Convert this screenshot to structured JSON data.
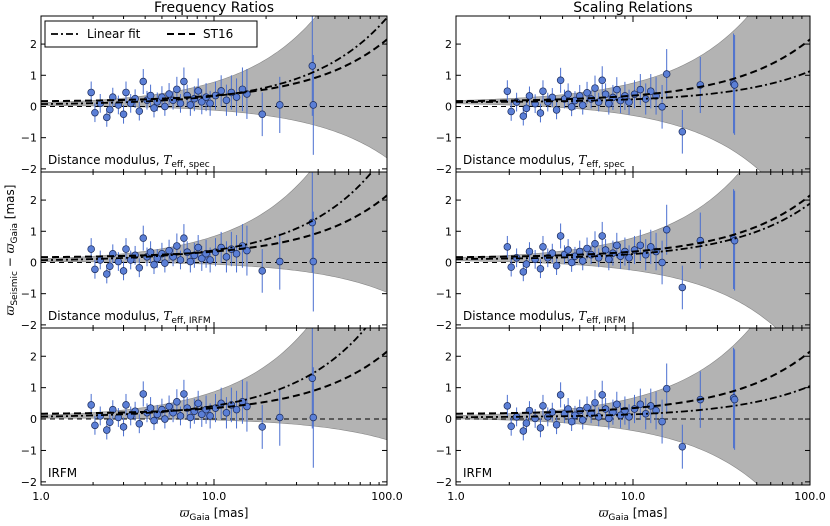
{
  "chart_data": {
    "type": "scatter",
    "columns": [
      {
        "title": "Frequency Ratios"
      },
      {
        "title": "Scaling Relations"
      }
    ],
    "row_labels": [
      {
        "prefix": "Distance modulus, ",
        "symbol": "T",
        "sub": "eff, spec"
      },
      {
        "prefix": "Distance modulus, ",
        "symbol": "T",
        "sub": "eff, IRFM"
      },
      {
        "prefix": "IRFM",
        "symbol": "",
        "sub": ""
      }
    ],
    "xlabel": {
      "symbol": "ϖ",
      "sub": "Gaia",
      "units": "[mas]"
    },
    "ylabel": {
      "symbol": "ϖ",
      "sub1": "Seismic",
      "minus": " − ",
      "sub2": "Gaia",
      "units": "[mas]"
    },
    "x_scale": "log",
    "xlim": [
      1.0,
      100.0
    ],
    "ylim": [
      -2.1,
      2.9
    ],
    "xtick_labels": [
      "1.0",
      "10.0",
      "100.0"
    ],
    "ytick_values": [
      -2,
      -1,
      0,
      1,
      2
    ],
    "ytick_labels": [
      "−2",
      "−1",
      "0",
      "1",
      "2"
    ],
    "legend": {
      "location": "upper-left",
      "entries": [
        {
          "label": "Linear fit",
          "style": "dash-dot"
        },
        {
          "label": "ST16",
          "style": "dashed"
        }
      ]
    },
    "reference_line": 0,
    "colors": {
      "points": "#5b7fd6",
      "errorbars": "#4a6fd0",
      "band": "#b3b3b3",
      "fit": "#000000"
    },
    "panels": [
      {
        "col": 0,
        "row": 0,
        "fit_intercept": 0.05,
        "fit_slope": 0.028,
        "band_width": 0.045
      },
      {
        "col": 1,
        "row": 0,
        "fit_intercept": 0.13,
        "fit_slope": 0.01,
        "band_width": 0.052
      },
      {
        "col": 0,
        "row": 1,
        "fit_intercept": 0.04,
        "fit_slope": 0.035,
        "band_width": 0.045
      },
      {
        "col": 1,
        "row": 1,
        "fit_intercept": 0.09,
        "fit_slope": 0.018,
        "band_width": 0.052
      },
      {
        "col": 0,
        "row": 2,
        "fit_intercept": 0.04,
        "fit_slope": 0.038,
        "band_width": 0.045
      },
      {
        "col": 1,
        "row": 2,
        "fit_intercept": 0.05,
        "fit_slope": 0.01,
        "band_width": 0.052
      }
    ],
    "st16_curve": {
      "intercept": 0.15,
      "slope": 0.02
    },
    "points": [
      {
        "x": 1.95,
        "y": 0.45,
        "err": 0.35
      },
      {
        "x": 2.05,
        "y": -0.2,
        "err": 0.3
      },
      {
        "x": 2.2,
        "y": 0.1,
        "err": 0.3
      },
      {
        "x": 2.4,
        "y": -0.35,
        "err": 0.3
      },
      {
        "x": 2.5,
        "y": -0.1,
        "err": 0.25
      },
      {
        "x": 2.6,
        "y": 0.3,
        "err": 0.3
      },
      {
        "x": 2.8,
        "y": 0.05,
        "err": 0.3
      },
      {
        "x": 3.0,
        "y": -0.25,
        "err": 0.3
      },
      {
        "x": 3.1,
        "y": 0.45,
        "err": 0.35
      },
      {
        "x": 3.3,
        "y": 0.1,
        "err": 0.3
      },
      {
        "x": 3.5,
        "y": 0.25,
        "err": 0.3
      },
      {
        "x": 3.7,
        "y": -0.15,
        "err": 0.3
      },
      {
        "x": 3.9,
        "y": 0.8,
        "err": 0.4
      },
      {
        "x": 4.1,
        "y": 0.2,
        "err": 0.3
      },
      {
        "x": 4.3,
        "y": 0.35,
        "err": 0.35
      },
      {
        "x": 4.5,
        "y": -0.05,
        "err": 0.3
      },
      {
        "x": 4.7,
        "y": 0.15,
        "err": 0.3
      },
      {
        "x": 5.0,
        "y": 0.3,
        "err": 0.35
      },
      {
        "x": 5.2,
        "y": 0.0,
        "err": 0.3
      },
      {
        "x": 5.5,
        "y": 0.4,
        "err": 0.35
      },
      {
        "x": 5.8,
        "y": 0.2,
        "err": 0.3
      },
      {
        "x": 6.1,
        "y": 0.55,
        "err": 0.4
      },
      {
        "x": 6.4,
        "y": 0.1,
        "err": 0.3
      },
      {
        "x": 6.7,
        "y": 0.8,
        "err": 0.45
      },
      {
        "x": 7.0,
        "y": 0.35,
        "err": 0.35
      },
      {
        "x": 7.3,
        "y": 0.05,
        "err": 0.35
      },
      {
        "x": 7.7,
        "y": 0.25,
        "err": 0.4
      },
      {
        "x": 8.1,
        "y": 0.5,
        "err": 0.4
      },
      {
        "x": 8.5,
        "y": 0.15,
        "err": 0.4
      },
      {
        "x": 9.0,
        "y": 0.3,
        "err": 0.45
      },
      {
        "x": 9.5,
        "y": 0.1,
        "err": 0.4
      },
      {
        "x": 10.2,
        "y": 0.35,
        "err": 0.45
      },
      {
        "x": 11.0,
        "y": 0.5,
        "err": 0.5
      },
      {
        "x": 11.8,
        "y": 0.2,
        "err": 0.5
      },
      {
        "x": 12.6,
        "y": 0.45,
        "err": 0.55
      },
      {
        "x": 13.5,
        "y": 0.3,
        "err": 0.6
      },
      {
        "x": 14.6,
        "y": 0.55,
        "err": 0.7
      },
      {
        "x": 15.5,
        "y": 0.4,
        "err": 0.8
      },
      {
        "x": 19.0,
        "y": -0.25,
        "err": 0.7
      },
      {
        "x": 24.0,
        "y": 0.05,
        "err": 0.9
      },
      {
        "x": 37.0,
        "y": 1.3,
        "err": 1.6
      },
      {
        "x": 37.5,
        "y": 0.05,
        "err": 1.6
      }
    ]
  }
}
